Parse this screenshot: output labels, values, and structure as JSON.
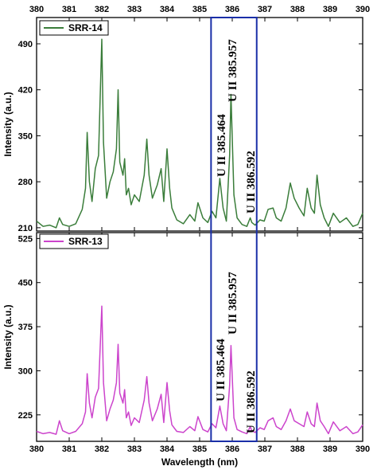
{
  "chart_data": [
    {
      "type": "line",
      "panel": "top",
      "xlabel": "",
      "ylabel": "Intensity (a.u.)",
      "xlim": [
        380,
        390
      ],
      "ylim": [
        205,
        530
      ],
      "x_ticks": [
        "380",
        "381",
        "382",
        "383",
        "384",
        "385",
        "386",
        "387",
        "388",
        "389",
        "390"
      ],
      "y_ticks": [
        210,
        280,
        350,
        420,
        490
      ],
      "legend_position": "top-left",
      "color": "#3a7d3a",
      "series": [
        {
          "name": "SRR-14",
          "x": [
            380.0,
            380.2,
            380.4,
            380.6,
            380.7,
            380.8,
            381.0,
            381.2,
            381.4,
            381.5,
            381.55,
            381.62,
            381.7,
            381.8,
            381.9,
            382.0,
            382.05,
            382.15,
            382.25,
            382.35,
            382.45,
            382.5,
            382.55,
            382.65,
            382.7,
            382.75,
            382.82,
            382.9,
            383.0,
            383.15,
            383.3,
            383.38,
            383.45,
            383.55,
            383.7,
            383.82,
            383.9,
            384.0,
            384.08,
            384.15,
            384.3,
            384.5,
            384.7,
            384.85,
            384.95,
            385.1,
            385.25,
            385.38,
            385.5,
            385.62,
            385.72,
            385.82,
            385.92,
            385.96,
            386.05,
            386.15,
            386.3,
            386.45,
            386.55,
            386.6,
            386.7,
            386.85,
            386.98,
            387.1,
            387.25,
            387.35,
            387.5,
            387.65,
            387.78,
            387.9,
            388.05,
            388.2,
            388.3,
            388.42,
            388.52,
            388.6,
            388.7,
            388.82,
            388.95,
            389.1,
            389.3,
            389.5,
            389.7,
            389.85,
            390.0
          ],
          "y": [
            220,
            212,
            214,
            210,
            225,
            215,
            212,
            216,
            238,
            270,
            355,
            280,
            250,
            300,
            320,
            497,
            340,
            255,
            280,
            295,
            330,
            420,
            310,
            290,
            315,
            260,
            270,
            245,
            260,
            250,
            290,
            345,
            290,
            255,
            275,
            300,
            250,
            330,
            270,
            240,
            222,
            216,
            230,
            220,
            248,
            225,
            218,
            235,
            225,
            285,
            240,
            220,
            320,
            413,
            260,
            225,
            215,
            212,
            225,
            218,
            214,
            222,
            220,
            238,
            240,
            225,
            220,
            240,
            278,
            255,
            240,
            228,
            270,
            240,
            232,
            290,
            245,
            225,
            212,
            232,
            218,
            225,
            212,
            215,
            232
          ]
        }
      ]
    },
    {
      "type": "line",
      "panel": "bottom",
      "xlabel": "Wavelength (nm)",
      "ylabel": "Intensity (a.u.)",
      "xlim": [
        380,
        390
      ],
      "ylim": [
        180,
        535
      ],
      "x_ticks": [
        "380",
        "381",
        "382",
        "383",
        "384",
        "385",
        "386",
        "387",
        "388",
        "389",
        "390"
      ],
      "y_ticks": [
        225,
        300,
        375,
        450,
        525
      ],
      "legend_position": "top-left",
      "color": "#cc44cc",
      "series": [
        {
          "name": "SRR-13",
          "x": [
            380.0,
            380.2,
            380.4,
            380.6,
            380.7,
            380.8,
            381.0,
            381.2,
            381.4,
            381.5,
            381.55,
            381.62,
            381.7,
            381.8,
            381.9,
            382.0,
            382.05,
            382.15,
            382.25,
            382.35,
            382.45,
            382.5,
            382.55,
            382.65,
            382.7,
            382.75,
            382.82,
            382.9,
            383.0,
            383.15,
            383.3,
            383.38,
            383.45,
            383.55,
            383.7,
            383.82,
            383.9,
            384.0,
            384.08,
            384.15,
            384.3,
            384.5,
            384.7,
            384.85,
            384.95,
            385.1,
            385.25,
            385.38,
            385.5,
            385.62,
            385.72,
            385.82,
            385.92,
            385.96,
            386.05,
            386.15,
            386.3,
            386.45,
            386.55,
            386.6,
            386.7,
            386.85,
            386.98,
            387.1,
            387.25,
            387.35,
            387.5,
            387.65,
            387.78,
            387.9,
            388.05,
            388.2,
            388.3,
            388.42,
            388.52,
            388.6,
            388.7,
            388.82,
            388.95,
            389.1,
            389.3,
            389.5,
            389.7,
            389.85,
            390.0
          ],
          "y": [
            197,
            193,
            195,
            192,
            215,
            198,
            193,
            197,
            210,
            230,
            295,
            245,
            220,
            255,
            270,
            410,
            280,
            215,
            235,
            250,
            280,
            345,
            262,
            245,
            268,
            220,
            230,
            207,
            220,
            212,
            250,
            290,
            245,
            215,
            235,
            260,
            212,
            280,
            232,
            208,
            197,
            195,
            205,
            198,
            222,
            200,
            196,
            210,
            203,
            240,
            210,
            198,
            275,
            343,
            220,
            200,
            196,
            193,
            205,
            198,
            195,
            203,
            200,
            215,
            220,
            205,
            200,
            215,
            235,
            215,
            210,
            205,
            230,
            210,
            205,
            245,
            215,
            205,
            193,
            213,
            198,
            205,
            193,
            196,
            208
          ]
        }
      ]
    }
  ],
  "annotations": {
    "peak1": "U II 385.464",
    "peak2": "U II 385.957",
    "peak3": "U II 386.592"
  },
  "colors": {
    "top_series": "#3a7d3a",
    "bottom_series": "#cc44cc",
    "highlight_box": "#1a2fa8"
  }
}
